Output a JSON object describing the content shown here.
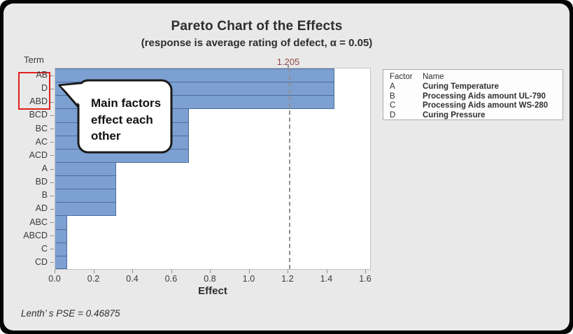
{
  "title": "Pareto Chart of the Effects",
  "subtitle": "(response is average rating of defect, α = 0.05)",
  "term_axis_label": "Term",
  "footnote": "Lenth’ s PSE = 0.46875",
  "reference_line": {
    "value": 1.205,
    "label": "1.205"
  },
  "callout": {
    "lines": [
      "Main factors",
      "effect each",
      "other"
    ],
    "text": "Main factors effect each other"
  },
  "legend": {
    "header": {
      "factor": "Factor",
      "name": "Name"
    },
    "rows": [
      {
        "factor": "A",
        "name": "Curing Temperature"
      },
      {
        "factor": "B",
        "name": "Processing Aids amount UL-790"
      },
      {
        "factor": "C",
        "name": "Processing Aids amount WS-280"
      },
      {
        "factor": "D",
        "name": "Curing Pressure"
      }
    ]
  },
  "colors": {
    "card_bg": "#E9E9E9",
    "bar_fill": "#7DA0D2",
    "bar_border": "#4A6D9B",
    "reference_label": "#8E4747",
    "highlight_box": "#E0201C"
  },
  "chart_data": {
    "type": "bar",
    "orientation": "horizontal",
    "title": "Pareto Chart of the Effects",
    "subtitle": "(response is average rating of defect, α = 0.05)",
    "xlabel": "Effect",
    "ylabel": "Term",
    "categories": [
      "AB",
      "D",
      "ABD",
      "BCD",
      "BC",
      "AC",
      "ACD",
      "A",
      "BD",
      "B",
      "AD",
      "ABC",
      "ABCD",
      "C",
      "CD"
    ],
    "values": [
      1.4375,
      1.4375,
      1.4375,
      0.6875,
      0.6875,
      0.6875,
      0.6875,
      0.3125,
      0.3125,
      0.3125,
      0.3125,
      0.0625,
      0.0625,
      0.0625,
      0.0625
    ],
    "xlim": [
      0.0,
      1.6
    ],
    "xticks": [
      0.0,
      0.2,
      0.4,
      0.6,
      0.8,
      1.0,
      1.2,
      1.4,
      1.6
    ],
    "xtick_labels": [
      "0.0",
      "0.2",
      "0.4",
      "0.6",
      "0.8",
      "1.0",
      "1.2",
      "1.4",
      "1.6"
    ],
    "reference_line": 1.205,
    "reference_alpha": 0.05,
    "lenths_pse": 0.46875,
    "highlighted_terms": [
      "AB",
      "D",
      "ABD"
    ],
    "grid": false,
    "legend_position": "right"
  }
}
